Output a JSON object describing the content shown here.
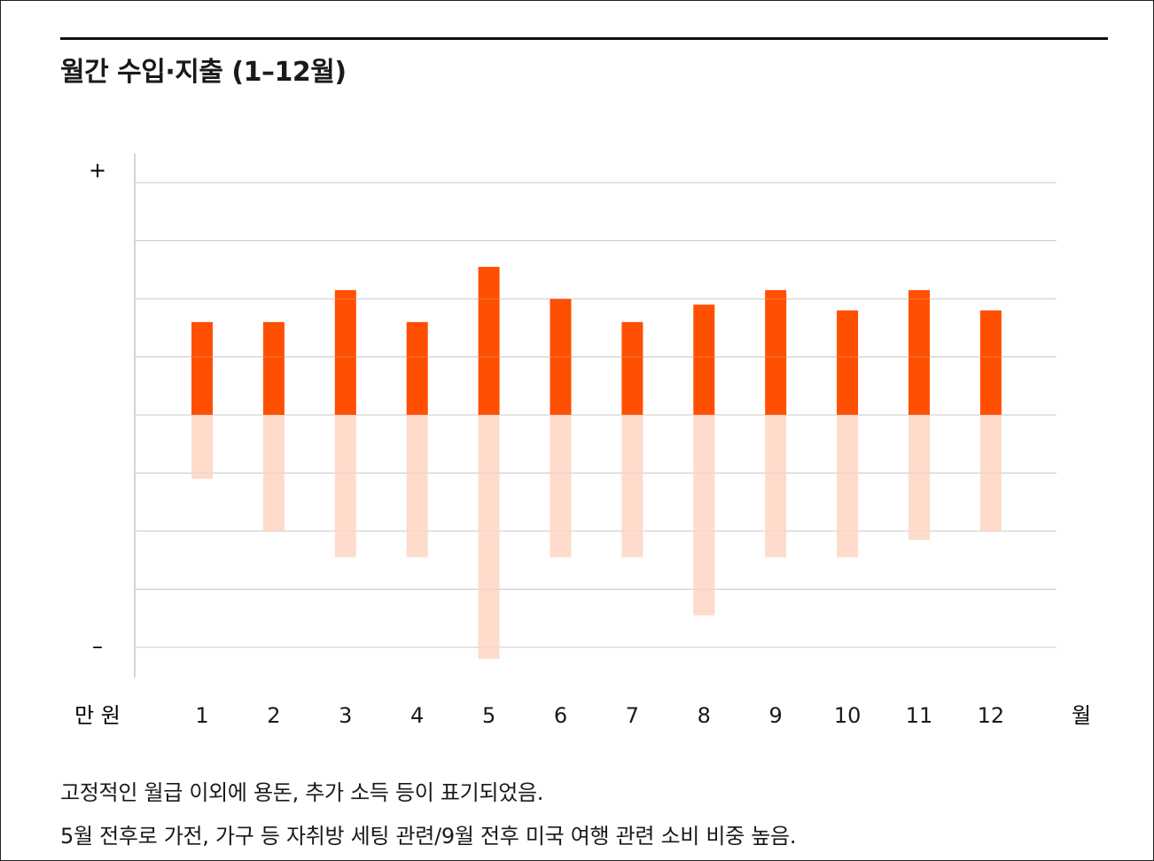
{
  "title": "월간 수입·지출 (1–12월)",
  "notes": [
    "고정적인 월급 이외에 용돈, 추가 소득 등이 표기되었음.",
    "5월 전후로 가전, 가구 등 자취방 세팅 관련/9월 전후 미국 여행 관련 소비 비중 높음."
  ],
  "colors": {
    "income": "#ff4f00",
    "expense": "#ffdbcc",
    "grid": "#c8c8c8"
  },
  "chart_data": {
    "type": "bar",
    "categories": [
      "1",
      "2",
      "3",
      "4",
      "5",
      "6",
      "7",
      "8",
      "9",
      "10",
      "11",
      "12"
    ],
    "series": [
      {
        "values": [
          1.6,
          1.6,
          2.15,
          1.6,
          2.55,
          2.0,
          1.6,
          1.9,
          2.15,
          1.8,
          2.15,
          1.8
        ]
      },
      {
        "values": [
          -1.1,
          -2.0,
          -2.45,
          -2.45,
          -4.2,
          -2.45,
          -2.45,
          -3.45,
          -2.45,
          -2.45,
          -2.15,
          -2.0
        ]
      }
    ],
    "ylim": [
      -4,
      4
    ],
    "y_axis_top_label": "+",
    "y_axis_bottom_label": "–",
    "y_unit_label": "만 원",
    "x_unit_label": "월",
    "grid": true,
    "legend": "none"
  }
}
